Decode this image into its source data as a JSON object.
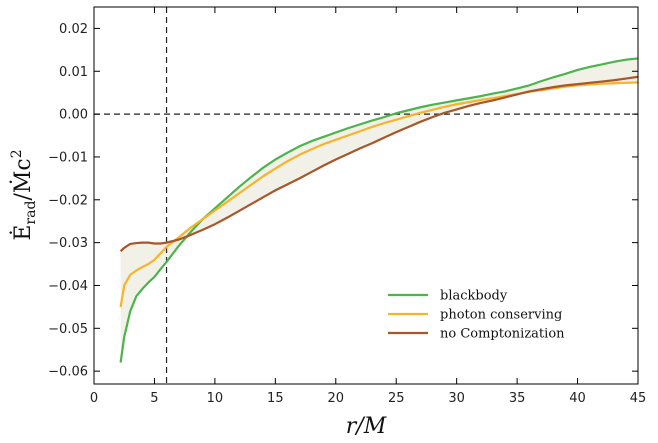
{
  "chart_data": {
    "type": "line",
    "title": "",
    "xlabel": "r/M",
    "ylabel_parts": {
      "main": "Ė",
      "sub": "rad",
      "div": "/Ṁc",
      "sup": "2"
    },
    "xlim": [
      0,
      45
    ],
    "ylim": [
      -0.063,
      0.025
    ],
    "xticks": [
      0,
      5,
      10,
      15,
      20,
      25,
      30,
      35,
      40,
      45
    ],
    "xtick_labels": [
      "0",
      "5",
      "10",
      "15",
      "20",
      "25",
      "30",
      "35",
      "40",
      "45"
    ],
    "yticks": [
      -0.06,
      -0.05,
      -0.04,
      -0.03,
      -0.02,
      -0.01,
      0.0,
      0.01,
      0.02
    ],
    "ytick_labels": [
      "−0.06",
      "−0.05",
      "−0.04",
      "−0.03",
      "−0.02",
      "−0.01",
      "0.00",
      "0.01",
      "0.02"
    ],
    "vline_x": 6,
    "hline_y": 0,
    "fill_color": "#f0efe6",
    "grid": false,
    "legend_position": "lower-right",
    "series": [
      {
        "name": "blackbody",
        "color": "#4db34d",
        "x": [
          2.2,
          2.5,
          3,
          3.5,
          4,
          4.5,
          5,
          5.5,
          6,
          7,
          8,
          9,
          10,
          11,
          12,
          13,
          14,
          15,
          16,
          17,
          18,
          19,
          20,
          21,
          22,
          23,
          24,
          25,
          26,
          27,
          28,
          29,
          30,
          31,
          32,
          33,
          34,
          35,
          36,
          37,
          38,
          39,
          40,
          41,
          42,
          43,
          44,
          45
        ],
        "y": [
          -0.058,
          -0.052,
          -0.046,
          -0.0425,
          -0.0408,
          -0.0393,
          -0.038,
          -0.0362,
          -0.0345,
          -0.0308,
          -0.0275,
          -0.0245,
          -0.022,
          -0.0195,
          -0.017,
          -0.0147,
          -0.0125,
          -0.0106,
          -0.009,
          -0.0075,
          -0.0063,
          -0.0053,
          -0.0043,
          -0.0033,
          -0.0024,
          -0.0015,
          -0.0007,
          0.0002,
          0.0009,
          0.0016,
          0.0022,
          0.0027,
          0.0032,
          0.0037,
          0.0042,
          0.0048,
          0.0053,
          0.006,
          0.0067,
          0.0077,
          0.0086,
          0.0094,
          0.0103,
          0.011,
          0.0116,
          0.0122,
          0.0127,
          0.013
        ]
      },
      {
        "name": "photon conserving",
        "color": "#f7b32b",
        "x": [
          2.2,
          2.5,
          3,
          3.5,
          4,
          4.5,
          5,
          5.5,
          6,
          7,
          8,
          9,
          10,
          11,
          12,
          13,
          14,
          15,
          16,
          17,
          18,
          19,
          20,
          21,
          22,
          23,
          24,
          25,
          26,
          27,
          28,
          29,
          30,
          31,
          32,
          33,
          34,
          35,
          36,
          37,
          38,
          39,
          40,
          41,
          42,
          43,
          44,
          45
        ],
        "y": [
          -0.045,
          -0.04,
          -0.0375,
          -0.0365,
          -0.0357,
          -0.035,
          -0.034,
          -0.0325,
          -0.031,
          -0.0288,
          -0.0265,
          -0.0245,
          -0.0225,
          -0.0205,
          -0.0185,
          -0.0165,
          -0.0145,
          -0.0127,
          -0.011,
          -0.0095,
          -0.0082,
          -0.007,
          -0.006,
          -0.005,
          -0.004,
          -0.003,
          -0.0021,
          -0.0013,
          -0.0005,
          0.0003,
          0.001,
          0.0017,
          0.0023,
          0.0028,
          0.0033,
          0.0037,
          0.0042,
          0.0047,
          0.0052,
          0.0056,
          0.006,
          0.0064,
          0.0067,
          0.0069,
          0.0071,
          0.0072,
          0.0073,
          0.0074
        ]
      },
      {
        "name": "no Comptonization",
        "color": "#a8562a",
        "x": [
          2.2,
          2.5,
          3,
          3.5,
          4,
          4.5,
          5,
          5.5,
          6,
          7,
          8,
          9,
          10,
          11,
          12,
          13,
          14,
          15,
          16,
          17,
          18,
          19,
          20,
          21,
          22,
          23,
          24,
          25,
          26,
          27,
          28,
          29,
          30,
          31,
          32,
          33,
          34,
          35,
          36,
          37,
          38,
          39,
          40,
          41,
          42,
          43,
          44,
          45
        ],
        "y": [
          -0.032,
          -0.0312,
          -0.0303,
          -0.0301,
          -0.03,
          -0.03,
          -0.0302,
          -0.0302,
          -0.03,
          -0.0293,
          -0.0282,
          -0.027,
          -0.0257,
          -0.0242,
          -0.0226,
          -0.021,
          -0.0194,
          -0.0178,
          -0.0164,
          -0.015,
          -0.0135,
          -0.012,
          -0.0106,
          -0.0093,
          -0.008,
          -0.0068,
          -0.0055,
          -0.0042,
          -0.003,
          -0.0018,
          -0.0007,
          0.0003,
          0.0011,
          0.0019,
          0.0026,
          0.0032,
          0.0039,
          0.0046,
          0.0053,
          0.0058,
          0.0063,
          0.0067,
          0.007,
          0.0073,
          0.0076,
          0.0079,
          0.0083,
          0.0087
        ]
      }
    ]
  }
}
